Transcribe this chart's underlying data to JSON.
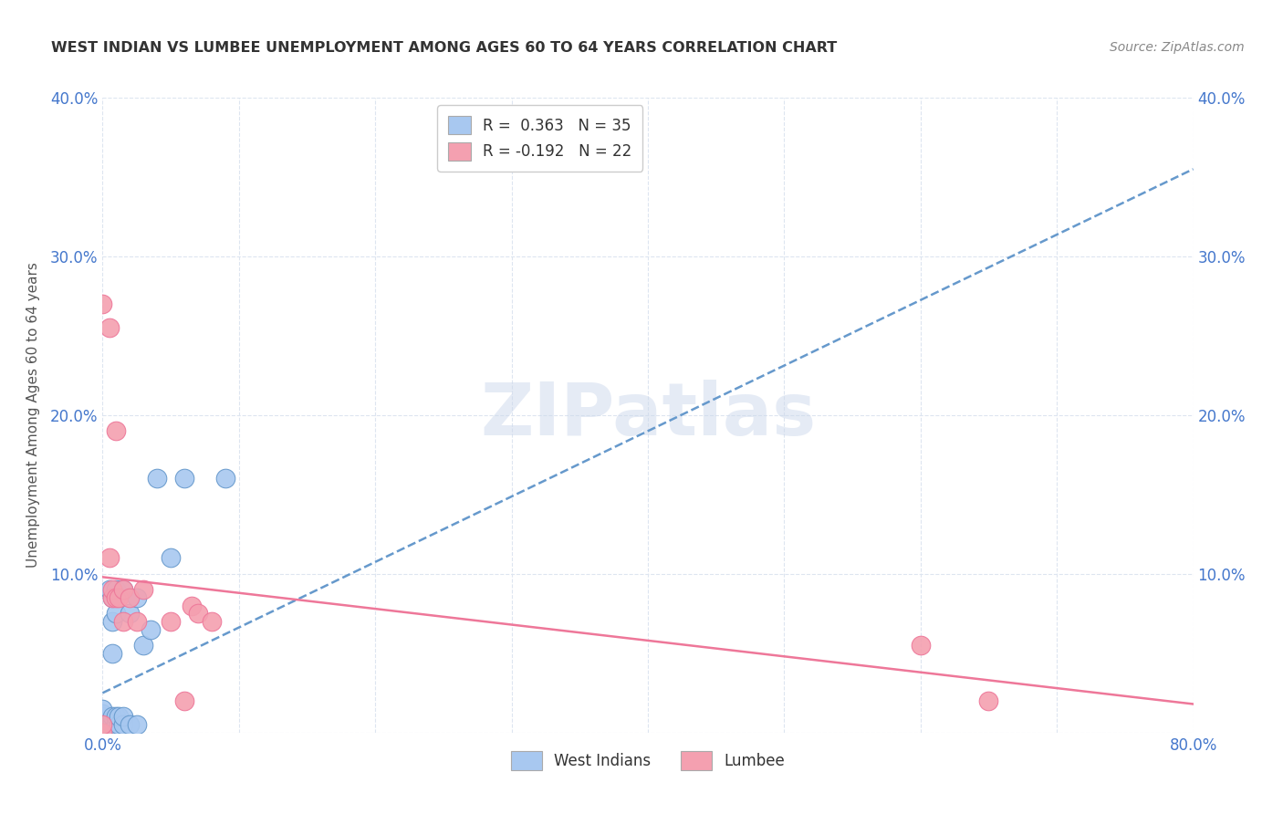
{
  "title": "WEST INDIAN VS LUMBEE UNEMPLOYMENT AMONG AGES 60 TO 64 YEARS CORRELATION CHART",
  "source": "Source: ZipAtlas.com",
  "ylabel": "Unemployment Among Ages 60 to 64 years",
  "xlim": [
    0,
    0.8
  ],
  "ylim": [
    0,
    0.4
  ],
  "xtick_positions": [
    0.0,
    0.1,
    0.2,
    0.3,
    0.4,
    0.5,
    0.6,
    0.7,
    0.8
  ],
  "xticklabels": [
    "0.0%",
    "",
    "",
    "",
    "",
    "",
    "",
    "",
    "80.0%"
  ],
  "ytick_positions": [
    0.0,
    0.1,
    0.2,
    0.3,
    0.4
  ],
  "yticklabels": [
    "",
    "10.0%",
    "20.0%",
    "30.0%",
    "40.0%"
  ],
  "west_indian_color": "#a8c8f0",
  "lumbee_color": "#f4a0b0",
  "trend_wi_color": "#6699cc",
  "trend_lumbee_color": "#ee7799",
  "background_color": "#ffffff",
  "watermark": "ZIPatlas",
  "title_color": "#333333",
  "source_color": "#888888",
  "ylabel_color": "#555555",
  "tick_color": "#4477cc",
  "grid_color": "#dde5f0",
  "legend_edge_color": "#cccccc",
  "west_indian_x": [
    0.0,
    0.0,
    0.0,
    0.0,
    0.0,
    0.0,
    0.005,
    0.005,
    0.005,
    0.005,
    0.007,
    0.007,
    0.007,
    0.007,
    0.007,
    0.007,
    0.01,
    0.01,
    0.01,
    0.01,
    0.012,
    0.012,
    0.015,
    0.015,
    0.015,
    0.02,
    0.02,
    0.025,
    0.025,
    0.03,
    0.035,
    0.04,
    0.05,
    0.06,
    0.09
  ],
  "west_indian_y": [
    0.0,
    0.005,
    0.007,
    0.01,
    0.012,
    0.015,
    0.0,
    0.005,
    0.007,
    0.09,
    0.005,
    0.007,
    0.01,
    0.05,
    0.07,
    0.085,
    0.005,
    0.01,
    0.075,
    0.09,
    0.005,
    0.01,
    0.005,
    0.01,
    0.09,
    0.005,
    0.075,
    0.005,
    0.085,
    0.055,
    0.065,
    0.16,
    0.11,
    0.16,
    0.16
  ],
  "lumbee_x": [
    0.0,
    0.0,
    0.0,
    0.005,
    0.005,
    0.007,
    0.007,
    0.01,
    0.01,
    0.012,
    0.015,
    0.015,
    0.02,
    0.025,
    0.03,
    0.05,
    0.06,
    0.065,
    0.07,
    0.08,
    0.6,
    0.65
  ],
  "lumbee_y": [
    0.0,
    0.005,
    0.27,
    0.11,
    0.255,
    0.085,
    0.09,
    0.19,
    0.085,
    0.085,
    0.07,
    0.09,
    0.085,
    0.07,
    0.09,
    0.07,
    0.02,
    0.08,
    0.075,
    0.07,
    0.055,
    0.02
  ],
  "wi_trend_x0": 0.0,
  "wi_trend_x1": 0.8,
  "wi_trend_y0": 0.025,
  "wi_trend_y1": 0.355,
  "lu_trend_x0": 0.0,
  "lu_trend_x1": 0.8,
  "lu_trend_y0": 0.098,
  "lu_trend_y1": 0.018
}
